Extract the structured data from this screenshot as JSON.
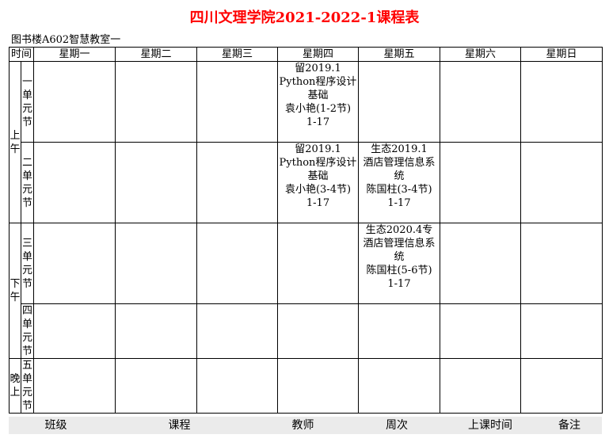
{
  "title": "四川文理学院2021-2022-1课程表",
  "room": "图书楼A602智慧教室一",
  "header": {
    "time": "时间",
    "days": [
      "星期一",
      "星期二",
      "星期三",
      "星期四",
      "星期五",
      "星期六",
      "星期日"
    ]
  },
  "periods": [
    "上午",
    "下午",
    "晚上"
  ],
  "units": [
    "一单元节",
    "二单元节",
    "三单元节",
    "四单元节",
    "五单元节"
  ],
  "courses": {
    "u1_thu": {
      "class": "留2019.1",
      "course": "Python程序设计基础",
      "teacher": "袁小艳(1-2节)",
      "weeks": "1-17"
    },
    "u2_thu": {
      "class": "留2019.1",
      "course": "Python程序设计基础",
      "teacher": "袁小艳(3-4节)",
      "weeks": "1-17"
    },
    "u2_fri": {
      "class": "生态2019.1",
      "course": "酒店管理信息系统",
      "teacher": "陈国柱(3-4节)",
      "weeks": "1-17"
    },
    "u3_fri": {
      "class": "生态2020.4专",
      "course": "酒店管理信息系统",
      "teacher": "陈国柱(5-6节)",
      "weeks": "1-17"
    }
  },
  "footer": [
    "班级",
    "课程",
    "教师",
    "周次",
    "上课时间",
    "备注"
  ]
}
